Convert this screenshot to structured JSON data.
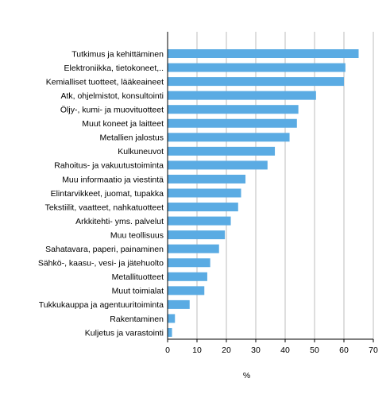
{
  "chart_data": {
    "type": "bar",
    "orientation": "horizontal",
    "categories": [
      "Tutkimus ja kehittäminen",
      "Elektroniikka, tietokoneet,..",
      "Kemialliset tuotteet, lääkeaineet",
      "Atk, ohjelmistot, konsultointi",
      "Öljy-, kumi- ja muovituotteet",
      "Muut koneet ja laitteet",
      "Metallien jalostus",
      "Kulkuneuvot",
      "Rahoitus- ja vakuutustoiminta",
      "Muu informaatio ja viestintä",
      "Elintarvikkeet, juomat, tupakka",
      "Tekstiilit, vaatteet, nahkatuotteet",
      "Arkkitehti- yms. palvelut",
      "Muu teollisuus",
      "Sahatavara, paperi, painaminen",
      "Sähkö-, kaasu-, vesi- ja jätehuolto",
      "Metallituotteet",
      "Muut toimialat",
      "Tukkukauppa ja agentuuritoiminta",
      "Rakentaminen",
      "Kuljetus ja varastointi"
    ],
    "values": [
      65,
      60.5,
      60,
      50.5,
      44.5,
      44,
      41.5,
      36.5,
      34,
      26.5,
      25,
      24,
      21.5,
      19.5,
      17.5,
      14.5,
      13.5,
      12.5,
      7.5,
      2.5,
      1.5
    ],
    "xlim": [
      0,
      70
    ],
    "xticks": [
      "0",
      "10",
      "20",
      "30",
      "40",
      "50",
      "60",
      "70"
    ],
    "xlabel": "%",
    "ylabel": "",
    "title": "",
    "grid": true,
    "legend": "none",
    "bar_color": "#5aabe3",
    "grid_color": "#bcbcbc"
  }
}
